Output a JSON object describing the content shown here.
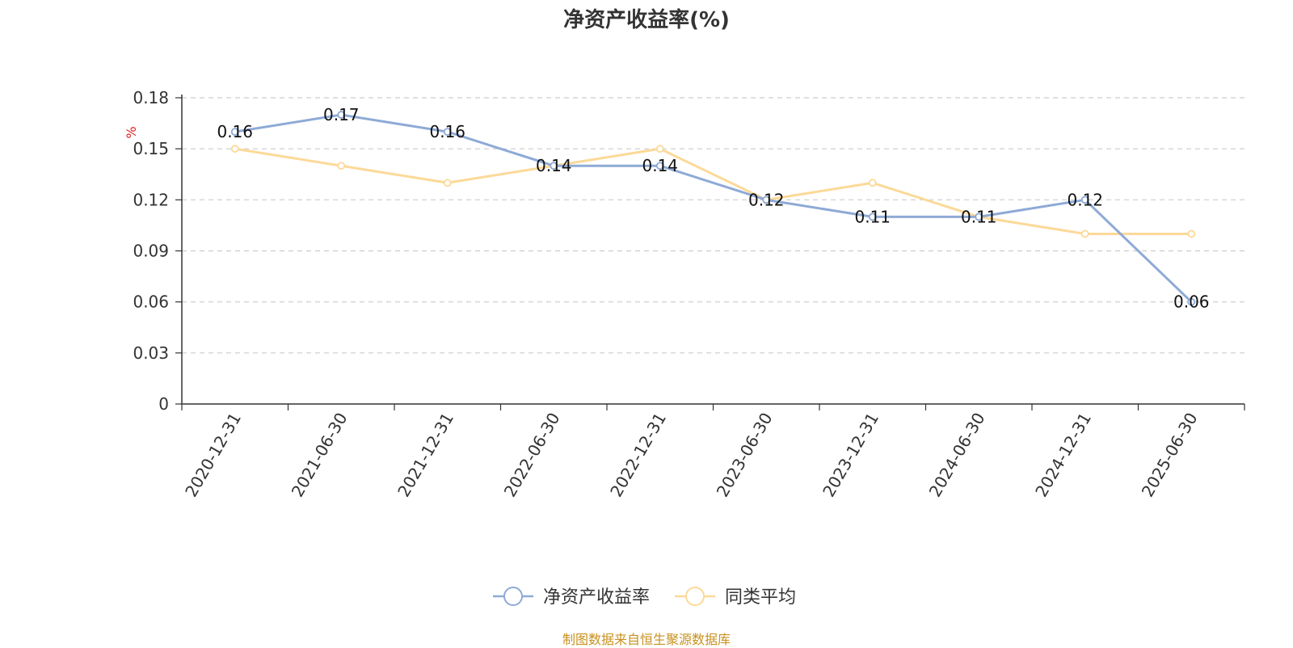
{
  "chart_data": {
    "type": "line",
    "title": "净资产收益率(%)",
    "ylabel": "%",
    "xlabel": "",
    "ylim": [
      0,
      0.18
    ],
    "yticks": [
      "0",
      "0.03",
      "0.06",
      "0.09",
      "0.12",
      "0.15",
      "0.18"
    ],
    "categories": [
      "2020-12-31",
      "2021-06-30",
      "2021-12-31",
      "2022-06-30",
      "2022-12-31",
      "2023-06-30",
      "2023-12-31",
      "2024-06-30",
      "2024-12-31",
      "2025-06-30"
    ],
    "series": [
      {
        "name": "净资产收益率",
        "values": [
          0.16,
          0.17,
          0.16,
          0.14,
          0.14,
          0.12,
          0.11,
          0.11,
          0.12,
          0.06
        ],
        "labels": [
          "0.16",
          "0.17",
          "0.16",
          "0.14",
          "0.14",
          "0.12",
          "0.11",
          "0.11",
          "0.12",
          "0.06"
        ],
        "color": "#8eaad6"
      },
      {
        "name": "同类平均",
        "values": [
          0.15,
          0.14,
          0.13,
          0.14,
          0.15,
          0.12,
          0.13,
          0.11,
          0.1,
          0.1
        ],
        "color": "#fcd998"
      }
    ],
    "grid": true,
    "legend_position": "bottom-center"
  },
  "source": "制图数据来自恒生聚源数据库"
}
